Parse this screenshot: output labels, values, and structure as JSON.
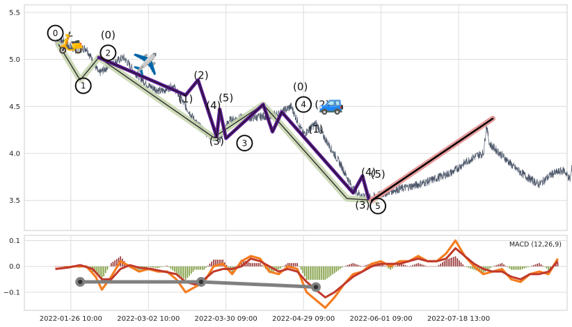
{
  "chart_data": [
    {
      "type": "line",
      "panel": "price",
      "ylim": [
        3.18,
        5.58
      ],
      "yticks": [
        "3.5",
        "4.0",
        "4.5",
        "5.0",
        "5.5"
      ],
      "ytick_values": [
        3.5,
        4.0,
        4.5,
        5.0,
        5.5
      ],
      "grid": true,
      "price_anchors": [
        [
          0,
          5.18
        ],
        [
          3,
          5.2
        ],
        [
          6,
          5.1
        ],
        [
          10,
          5.12
        ],
        [
          14,
          4.85
        ],
        [
          18,
          4.95
        ],
        [
          22,
          5.02
        ],
        [
          26,
          4.85
        ],
        [
          30,
          4.72
        ],
        [
          34,
          4.66
        ],
        [
          38,
          4.72
        ],
        [
          42,
          4.5
        ],
        [
          46,
          4.3
        ],
        [
          50,
          4.18
        ],
        [
          53,
          4.15
        ],
        [
          56,
          4.35
        ],
        [
          60,
          4.38
        ],
        [
          64,
          4.38
        ],
        [
          68,
          4.4
        ],
        [
          72,
          4.42
        ],
        [
          76,
          4.5
        ],
        [
          80,
          4.2
        ],
        [
          84,
          4.32
        ],
        [
          88,
          4.1
        ],
        [
          92,
          3.88
        ],
        [
          96,
          3.62
        ],
        [
          100,
          3.52
        ],
        [
          104,
          3.55
        ],
        [
          108,
          3.6
        ],
        [
          112,
          3.63
        ],
        [
          116,
          3.66
        ],
        [
          120,
          3.7
        ],
        [
          124,
          3.75
        ],
        [
          128,
          3.8
        ],
        [
          132,
          3.9
        ],
        [
          136,
          3.98
        ],
        [
          138,
          4.0
        ],
        [
          139,
          4.3
        ],
        [
          140,
          4.1
        ],
        [
          144,
          3.98
        ],
        [
          148,
          3.85
        ],
        [
          152,
          3.75
        ],
        [
          156,
          3.67
        ],
        [
          160,
          3.78
        ],
        [
          164,
          3.82
        ],
        [
          166,
          3.72
        ],
        [
          167,
          3.95
        ],
        [
          168,
          4.13
        ]
      ],
      "sub_paths": [
        {
          "name": "green-degree",
          "color": "#c8d6b0",
          "points": [
            [
              1,
              5.16
            ],
            [
              8,
              4.78
            ],
            [
              14,
              5.02
            ],
            [
              51,
              4.17
            ],
            [
              67,
              4.52
            ],
            [
              94,
              3.52
            ],
            [
              103,
              3.5
            ]
          ]
        },
        {
          "name": "purple-degree",
          "color": "#5b1a8f",
          "points": [
            [
              14,
              5.02
            ],
            [
              42,
              4.62
            ],
            [
              46,
              4.78
            ],
            [
              52,
              4.18
            ],
            [
              53,
              4.47
            ],
            [
              55,
              4.16
            ],
            [
              67,
              4.52
            ],
            [
              70,
              4.23
            ],
            [
              73,
              4.44
            ],
            [
              96,
              3.58
            ],
            [
              99,
              3.76
            ],
            [
              101,
              3.52
            ]
          ]
        }
      ],
      "projection": {
        "name": "projection",
        "color": "#e79a9a",
        "points": [
          [
            102,
            3.5
          ],
          [
            141,
            4.37
          ]
        ]
      },
      "pivots": [
        {
          "label": "0",
          "x": 0,
          "y": 5.28
        },
        {
          "label": "1",
          "x": 9,
          "y": 4.72
        },
        {
          "label": "2",
          "x": 17,
          "y": 5.07
        },
        {
          "label": "3",
          "x": 61,
          "y": 4.11
        },
        {
          "label": "4",
          "x": 80,
          "y": 4.52
        },
        {
          "label": "5",
          "x": 104,
          "y": 3.44
        }
      ],
      "wave_labels": [
        {
          "text": "(0)",
          "x": 17,
          "y": 5.26
        },
        {
          "text": "(2)",
          "x": 47,
          "y": 4.83
        },
        {
          "text": "(1)",
          "x": 42,
          "y": 4.58
        },
        {
          "text": "(4)",
          "x": 51,
          "y": 4.51
        },
        {
          "text": "(5)",
          "x": 55,
          "y": 4.59
        },
        {
          "text": "(3)",
          "x": 52,
          "y": 4.13
        },
        {
          "text": "(0)",
          "x": 79,
          "y": 4.71
        },
        {
          "text": "(2)",
          "x": 86,
          "y": 4.52
        },
        {
          "text": "(1)",
          "x": 84,
          "y": 4.26
        },
        {
          "text": "(4)",
          "x": 101,
          "y": 3.8
        },
        {
          "text": "(5)",
          "x": 104,
          "y": 3.78
        },
        {
          "text": "(3)",
          "x": 99,
          "y": 3.45
        }
      ],
      "emojis": [
        {
          "glyph": "🛵",
          "x": 5,
          "y": 5.18
        },
        {
          "glyph": "✈️",
          "x": 29,
          "y": 4.95
        },
        {
          "glyph": "🚙",
          "x": 89,
          "y": 4.53
        }
      ]
    },
    {
      "type": "line",
      "panel": "macd",
      "ylim": [
        -0.17,
        0.12
      ],
      "yticks": [
        "0.1",
        "0.0",
        "−0.1"
      ],
      "ytick_values": [
        0.1,
        0.0,
        -0.1
      ],
      "grid": true,
      "x_categories": [
        "2022-01-26 10:00",
        "2022-03-02 10:00",
        "2022-03-30 09:00",
        "2022-04-29 09:00",
        "2022-06-01 09:00",
        "2022-07-18 13:00"
      ],
      "x_tick_positions": [
        5,
        30,
        55,
        80,
        105,
        130
      ],
      "x_range": [
        -10,
        165
      ],
      "legend_text": "MACD (12,26,9)",
      "series": [
        {
          "color": "#f57c1f",
          "points": [
            [
              0,
              -0.01
            ],
            [
              3,
              -0.005
            ],
            [
              6,
              0.0
            ],
            [
              10,
              0.0
            ],
            [
              13,
              -0.04
            ],
            [
              15,
              -0.09
            ],
            [
              18,
              -0.04
            ],
            [
              21,
              0.02
            ],
            [
              24,
              0.0
            ],
            [
              27,
              -0.02
            ],
            [
              30,
              -0.01
            ],
            [
              33,
              -0.02
            ],
            [
              36,
              -0.02
            ],
            [
              39,
              -0.05
            ],
            [
              42,
              -0.1
            ],
            [
              45,
              -0.08
            ],
            [
              48,
              -0.06
            ],
            [
              51,
              0.0
            ],
            [
              54,
              0.01
            ],
            [
              57,
              -0.03
            ],
            [
              60,
              0.02
            ],
            [
              63,
              0.04
            ],
            [
              66,
              0.03
            ],
            [
              69,
              -0.02
            ],
            [
              72,
              -0.03
            ],
            [
              75,
              0.0
            ],
            [
              78,
              -0.01
            ],
            [
              81,
              -0.1
            ],
            [
              84,
              -0.13
            ],
            [
              87,
              -0.16
            ],
            [
              90,
              -0.12
            ],
            [
              93,
              -0.07
            ],
            [
              96,
              -0.03
            ],
            [
              99,
              -0.02
            ],
            [
              102,
              0.01
            ],
            [
              105,
              0.02
            ],
            [
              108,
              0.0
            ],
            [
              111,
              0.02
            ],
            [
              114,
              0.02
            ],
            [
              117,
              0.04
            ],
            [
              120,
              0.02
            ],
            [
              123,
              0.02
            ],
            [
              126,
              0.05
            ],
            [
              129,
              0.1
            ],
            [
              132,
              0.04
            ],
            [
              135,
              0.0
            ],
            [
              138,
              -0.03
            ],
            [
              141,
              -0.02
            ],
            [
              144,
              -0.01
            ],
            [
              147,
              -0.05
            ],
            [
              150,
              -0.06
            ],
            [
              153,
              -0.03
            ],
            [
              156,
              -0.02
            ],
            [
              159,
              -0.03
            ],
            [
              162,
              0.03
            ]
          ]
        },
        {
          "color": "#c0392b",
          "points": [
            [
              0,
              -0.01
            ],
            [
              4,
              -0.005
            ],
            [
              8,
              0.005
            ],
            [
              12,
              -0.01
            ],
            [
              15,
              -0.05
            ],
            [
              18,
              -0.05
            ],
            [
              21,
              -0.01
            ],
            [
              24,
              0.005
            ],
            [
              27,
              -0.005
            ],
            [
              31,
              -0.01
            ],
            [
              35,
              -0.02
            ],
            [
              39,
              -0.03
            ],
            [
              42,
              -0.06
            ],
            [
              45,
              -0.07
            ],
            [
              48,
              -0.05
            ],
            [
              51,
              -0.02
            ],
            [
              54,
              -0.01
            ],
            [
              57,
              -0.01
            ],
            [
              60,
              0.0
            ],
            [
              63,
              0.03
            ],
            [
              66,
              0.02
            ],
            [
              69,
              0.0
            ],
            [
              72,
              -0.02
            ],
            [
              75,
              -0.01
            ],
            [
              78,
              -0.02
            ],
            [
              81,
              -0.06
            ],
            [
              84,
              -0.09
            ],
            [
              87,
              -0.12
            ],
            [
              90,
              -0.1
            ],
            [
              93,
              -0.07
            ],
            [
              96,
              -0.04
            ],
            [
              99,
              -0.02
            ],
            [
              102,
              0.0
            ],
            [
              105,
              0.01
            ],
            [
              108,
              0.01
            ],
            [
              111,
              0.01
            ],
            [
              114,
              0.02
            ],
            [
              117,
              0.03
            ],
            [
              120,
              0.02
            ],
            [
              123,
              0.02
            ],
            [
              126,
              0.03
            ],
            [
              129,
              0.07
            ],
            [
              132,
              0.04
            ],
            [
              135,
              0.01
            ],
            [
              138,
              -0.01
            ],
            [
              141,
              -0.02
            ],
            [
              144,
              -0.02
            ],
            [
              147,
              -0.04
            ],
            [
              150,
              -0.05
            ],
            [
              153,
              -0.03
            ],
            [
              156,
              -0.03
            ],
            [
              159,
              -0.02
            ],
            [
              162,
              0.02
            ]
          ]
        }
      ],
      "divergence_line": {
        "color": "#808080",
        "points": [
          [
            8,
            -0.06
          ],
          [
            47,
            -0.06
          ],
          [
            84,
            -0.08
          ]
        ]
      },
      "histogram_colors": {
        "positive": "#8b1a1a",
        "negative": "#6b8e23"
      }
    }
  ]
}
